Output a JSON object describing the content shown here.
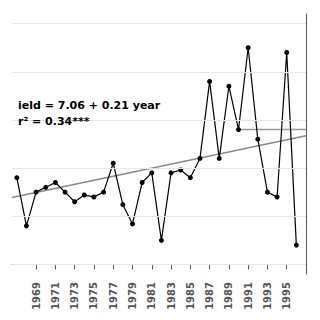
{
  "chart_data": {
    "type": "line",
    "x": [
      1967,
      1968,
      1969,
      1970,
      1971,
      1972,
      1973,
      1974,
      1975,
      1976,
      1977,
      1978,
      1979,
      1980,
      1981,
      1982,
      1983,
      1984,
      1985,
      1986,
      1987,
      1988,
      1989,
      1990,
      1991,
      1992,
      1993,
      1994,
      1995,
      1996
    ],
    "values": [
      9.0,
      4.0,
      7.5,
      8.0,
      8.5,
      7.5,
      6.5,
      7.2,
      7.0,
      7.5,
      10.5,
      6.2,
      4.2,
      8.5,
      9.5,
      2.5,
      9.5,
      9.8,
      9.0,
      11.0,
      19.0,
      11.0,
      18.5,
      14.0,
      22.5,
      13.0,
      7.5,
      7.0,
      22.0,
      2.0
    ],
    "color": "#000000",
    "marker": "circle",
    "trend": {
      "x": [
        1966.5,
        1997.0
      ],
      "values": [
        6.955,
        13.36
      ],
      "color": "#888888"
    },
    "mean_line": {
      "x": [
        1990,
        1997
      ],
      "values": [
        14.0,
        14.0
      ],
      "color": "#999999"
    },
    "annotations": [
      "ield = 7.06 + 0.21 year",
      "r² = 0.34***"
    ],
    "xlim": [
      1966.5,
      1997.0
    ],
    "ylim": [
      -1.0,
      26.0
    ],
    "xticks": [
      1969,
      1971,
      1973,
      1975,
      1977,
      1979,
      1981,
      1983,
      1985,
      1987,
      1989,
      1991,
      1993,
      1995
    ],
    "yticks": [
      0,
      5,
      10,
      15,
      20,
      25
    ],
    "grid": true,
    "tick_labels": "x"
  }
}
